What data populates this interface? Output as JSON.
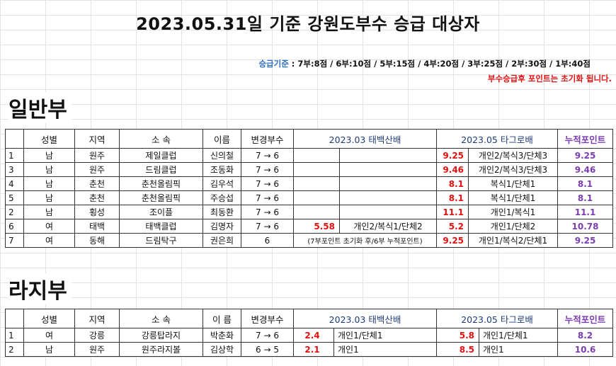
{
  "title": "2023.05.31일 기준 강원도부수 승급 대상자",
  "criteria": {
    "label": "승급기준",
    "text": " : 7부:8점 / 6부:10점 / 5부:15점 / 4부:20점 / 3부:25점 / 2부:30점 / 1부:40점"
  },
  "notice": "부수승급후 포인트는 초기화 됩니다.",
  "sections": [
    {
      "title": "일반부",
      "headers": {
        "gender": "성별",
        "region": "지역",
        "club": "소 속",
        "name": "이름",
        "division": "변경부수",
        "t1": "2023.03 태백산배",
        "t2": "2023.05 타그로배",
        "cum": "누적포인트"
      },
      "rows": [
        {
          "no": "1",
          "gender": "남",
          "region": "원주",
          "club": "제일클럽",
          "name": "신의철",
          "division": "7 → 6",
          "t1_score": "",
          "t1_detail": "",
          "t2_score": "9.25",
          "t2_detail": "개인2/복식3/단체3",
          "cum": "9.25"
        },
        {
          "no": "3",
          "gender": "남",
          "region": "원주",
          "club": "드림클럽",
          "name": "조동화",
          "division": "7 → 6",
          "t1_score": "",
          "t1_detail": "",
          "t2_score": "9.46",
          "t2_detail": "개인2/복식3/단체3",
          "cum": "9.46"
        },
        {
          "no": "4",
          "gender": "남",
          "region": "춘천",
          "club": "춘천올림픽",
          "name": "김우석",
          "division": "7 → 6",
          "t1_score": "",
          "t1_detail": "",
          "t2_score": "8.1",
          "t2_detail": "복식1/단체1",
          "cum": "8.1"
        },
        {
          "no": "5",
          "gender": "남",
          "region": "춘천",
          "club": "춘천올림픽",
          "name": "주승섭",
          "division": "7 → 6",
          "t1_score": "",
          "t1_detail": "",
          "t2_score": "8.1",
          "t2_detail": "복식1/단체1",
          "cum": "8.1"
        },
        {
          "no": "2",
          "gender": "남",
          "region": "횡성",
          "club": "조이플",
          "name": "최동환",
          "division": "7 → 6",
          "t1_score": "",
          "t1_detail": "",
          "t2_score": "11.1",
          "t2_detail": "개인1/복식1",
          "cum": "11.1"
        },
        {
          "no": "6",
          "gender": "여",
          "region": "태백",
          "club": "태백클럽",
          "name": "김명자",
          "division": "7 → 6",
          "t1_score": "5.58",
          "t1_detail": "개인2/복식1/단체2",
          "t2_score": "5.2",
          "t2_detail": "개인1/단체2",
          "cum": "10.78"
        },
        {
          "no": "7",
          "gender": "여",
          "region": "동해",
          "club": "드림탁구",
          "name": "권은희",
          "division": "6",
          "t1_note": "(7부포인트 초기화 후/6부 누적포인트)",
          "t2_score": "9.25",
          "t2_detail": "개인1/복식2/단체1",
          "cum": "9.25"
        }
      ]
    },
    {
      "title": "라지부",
      "headers": {
        "gender": "성별",
        "region": "지역",
        "club": "소 속",
        "name": "이 름",
        "division": "변경부수",
        "t1": "2023.03 태백산배",
        "t2": "2023.05 타그로배",
        "cum": "누적포인트"
      },
      "rows": [
        {
          "no": "1",
          "gender": "여",
          "region": "강릉",
          "club": "강릉탑라지",
          "name": "박춘화",
          "division": "7 → 6",
          "t1_score": "2.4",
          "t1_detail": "개인1/단체1",
          "t2_score": "5.8",
          "t2_detail": "개인1/단체1",
          "cum": "8.2"
        },
        {
          "no": "2",
          "gender": "남",
          "region": "원주",
          "club": "원주라지볼",
          "name": "김상학",
          "division": "6 → 5",
          "t1_score": "2.1",
          "t1_detail": "개인1",
          "t2_score": "8.5",
          "t2_detail": "개인1",
          "cum": "10.6"
        }
      ]
    }
  ]
}
